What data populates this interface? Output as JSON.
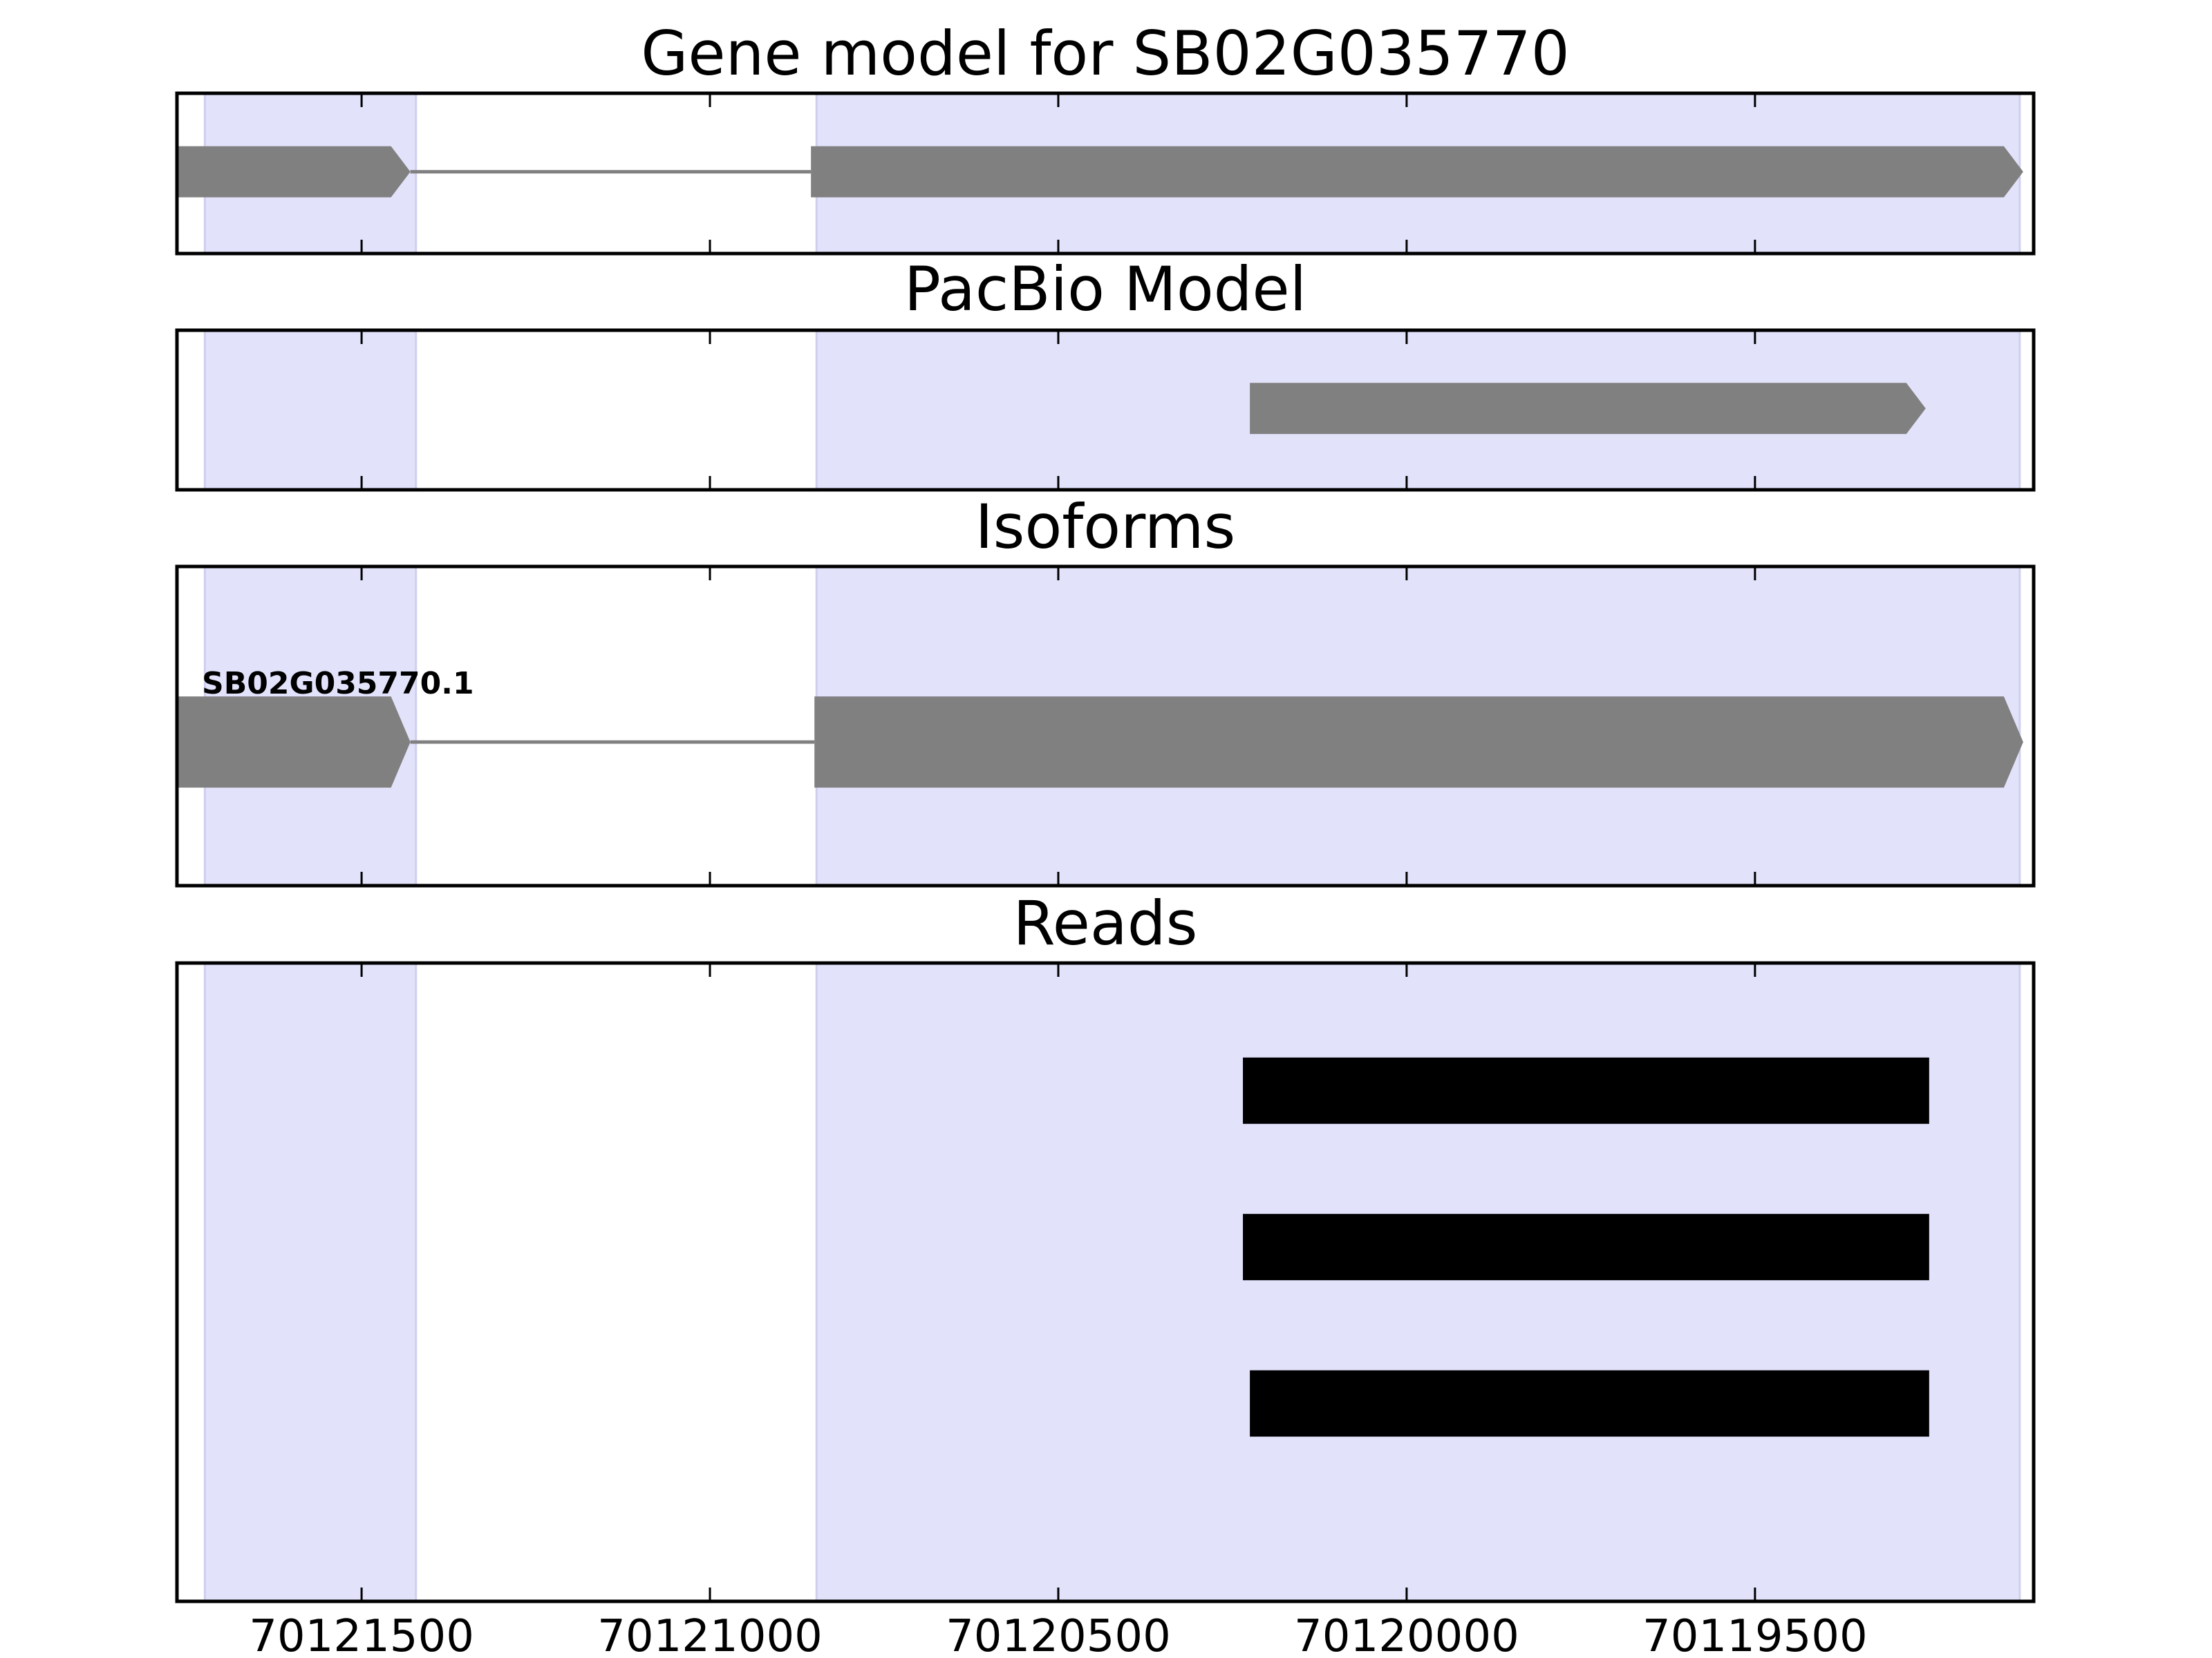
{
  "chart_data": {
    "type": "gene-structure",
    "title": "Gene model for SB02G035770",
    "xaxis": {
      "reversed": true,
      "range": [
        70121765,
        70119100
      ],
      "ticks": [
        70121500,
        70121000,
        70120500,
        70120000,
        70119500
      ],
      "tick_labels": [
        "70121500",
        "70121000",
        "70120500",
        "70120000",
        "70119500"
      ]
    },
    "exon_highlights": [
      {
        "start": 70121725,
        "end": 70121422
      },
      {
        "start": 70120847,
        "end": 70119120
      }
    ],
    "colors": {
      "highlight": "#e2e2fb",
      "feature": "#808080",
      "read": "#000000",
      "frame": "#000000"
    },
    "panels": [
      {
        "id": "gene-model",
        "title": "Gene model for SB02G035770",
        "features": [
          {
            "exons": [
              [
                70121765,
                70121430
              ],
              [
                70120855,
                70119115
              ]
            ],
            "strand": "-"
          }
        ]
      },
      {
        "id": "pacbio-model",
        "title": "PacBio Model",
        "features": [
          {
            "exons": [
              [
                70120225,
                70119255
              ]
            ],
            "strand": "-"
          }
        ]
      },
      {
        "id": "isoforms",
        "title": "Isoforms",
        "features": [
          {
            "name": "SB02G035770.1",
            "exons": [
              [
                70121765,
                70121430
              ],
              [
                70120850,
                70119115
              ]
            ],
            "strand": "-"
          }
        ]
      },
      {
        "id": "reads",
        "title": "Reads",
        "reads": [
          {
            "start": 70120235,
            "end": 70119250
          },
          {
            "start": 70120235,
            "end": 70119250
          },
          {
            "start": 70120225,
            "end": 70119250
          }
        ]
      }
    ]
  }
}
